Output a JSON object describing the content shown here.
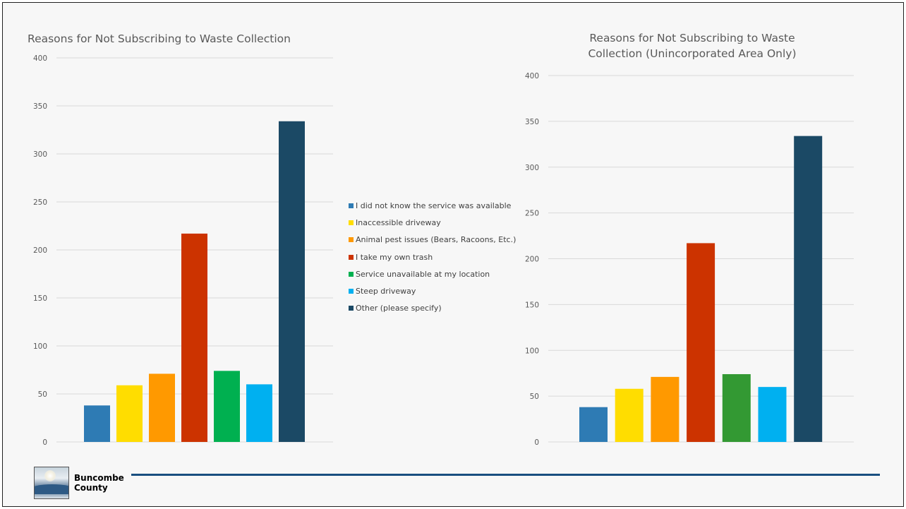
{
  "footer": {
    "logo_line1": "Buncombe",
    "logo_line2": "County"
  },
  "legend": [
    {
      "label": "I did not know the service was available",
      "color": "#2e7bb4"
    },
    {
      "label": "Inaccessible driveway",
      "color": "#ffdd00"
    },
    {
      "label": "Animal pest issues (Bears, Racoons, Etc.)",
      "color": "#ff9900"
    },
    {
      "label": "I take my own trash",
      "color": "#cc3300"
    },
    {
      "label": "Service unavailable at my location",
      "color": "#00b050"
    },
    {
      "label": "Steep driveway",
      "color": "#00b0f0"
    },
    {
      "label": "Other (please specify)",
      "color": "#1b4965"
    }
  ],
  "chart_data": [
    {
      "type": "bar",
      "title": "Reasons for Not Subscribing to Waste Collection",
      "title_lines": [
        "Reasons for Not Subscribing to Waste Collection"
      ],
      "categories": [
        "I did not know the service was available",
        "Inaccessible driveway",
        "Animal pest issues (Bears, Racoons, Etc.)",
        "I take my own trash",
        "Service unavailable at my location",
        "Steep driveway",
        "Other (please specify)"
      ],
      "values": [
        38,
        59,
        71,
        217,
        74,
        60,
        334
      ],
      "colors": [
        "#2e7bb4",
        "#ffdd00",
        "#ff9900",
        "#cc3300",
        "#00b050",
        "#00b0f0",
        "#1b4965"
      ],
      "ylim": [
        0,
        400
      ],
      "yticks": [
        0,
        50,
        100,
        150,
        200,
        250,
        300,
        350,
        400
      ],
      "grid": true,
      "legend": "right"
    },
    {
      "type": "bar",
      "title": "Reasons for Not Subscribing to Waste Collection (Unincorporated Area Only)",
      "title_lines": [
        "Reasons for Not Subscribing to Waste",
        "Collection (Unincorporated Area Only)"
      ],
      "categories": [
        "I did not know the service was available",
        "Inaccessible driveway",
        "Animal pest issues (Bears, Racoons, Etc.)",
        "I take my own trash",
        "Service unavailable at my location",
        "Steep driveway",
        "Other (please specify)"
      ],
      "values": [
        38,
        58,
        71,
        217,
        74,
        60,
        334
      ],
      "colors": [
        "#2e7bb4",
        "#ffdd00",
        "#ff9900",
        "#cc3300",
        "#339933",
        "#00b0f0",
        "#1b4965"
      ],
      "ylim": [
        0,
        400
      ],
      "yticks": [
        0,
        50,
        100,
        150,
        200,
        250,
        300,
        350,
        400
      ],
      "grid": true,
      "legend": "none"
    }
  ]
}
